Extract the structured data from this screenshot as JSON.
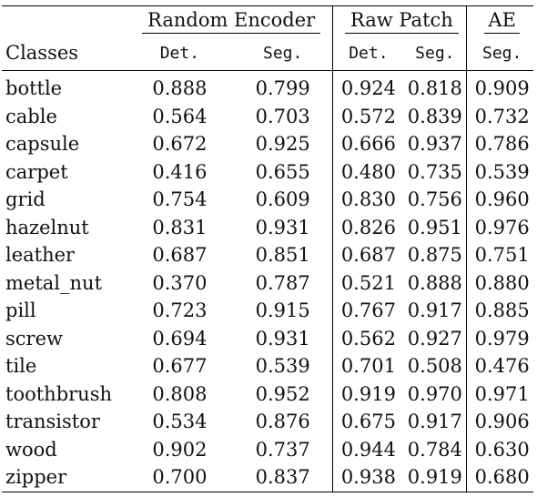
{
  "table": {
    "groups": [
      "Random Encoder",
      "Raw Patch",
      "AE"
    ],
    "columns": [
      "Classes",
      "Det.",
      "Seg.",
      "Det.",
      "Seg.",
      "Seg."
    ],
    "rows": [
      {
        "cls": "bottle",
        "v": [
          "0.888",
          "0.799",
          "0.924",
          "0.818",
          "0.909"
        ],
        "bold": [
          false,
          false,
          true,
          false,
          false
        ]
      },
      {
        "cls": "cable",
        "v": [
          "0.564",
          "0.703",
          "0.572",
          "0.839",
          "0.732"
        ],
        "bold": [
          false,
          false,
          false,
          false,
          false
        ]
      },
      {
        "cls": "capsule",
        "v": [
          "0.672",
          "0.925",
          "0.666",
          "0.937",
          "0.786"
        ],
        "bold": [
          false,
          true,
          false,
          true,
          false
        ]
      },
      {
        "cls": "carpet",
        "v": [
          "0.416",
          "0.655",
          "0.480",
          "0.735",
          "0.539"
        ],
        "bold": [
          false,
          false,
          false,
          false,
          false
        ]
      },
      {
        "cls": "grid",
        "v": [
          "0.754",
          "0.609",
          "0.830",
          "0.756",
          "0.960"
        ],
        "bold": [
          false,
          false,
          false,
          false,
          false
        ]
      },
      {
        "cls": "hazelnut",
        "v": [
          "0.831",
          "0.931",
          "0.826",
          "0.951",
          "0.976"
        ],
        "bold": [
          false,
          true,
          false,
          true,
          false
        ]
      },
      {
        "cls": "leather",
        "v": [
          "0.687",
          "0.851",
          "0.687",
          "0.875",
          "0.751"
        ],
        "bold": [
          false,
          false,
          false,
          false,
          false
        ]
      },
      {
        "cls": "metal_nut",
        "v": [
          "0.370",
          "0.787",
          "0.521",
          "0.888",
          "0.880"
        ],
        "bold": [
          false,
          false,
          false,
          false,
          false
        ]
      },
      {
        "cls": "pill",
        "v": [
          "0.723",
          "0.915",
          "0.767",
          "0.917",
          "0.885"
        ],
        "bold": [
          false,
          true,
          false,
          true,
          false
        ]
      },
      {
        "cls": "screw",
        "v": [
          "0.694",
          "0.931",
          "0.562",
          "0.927",
          "0.979"
        ],
        "bold": [
          false,
          true,
          false,
          true,
          false
        ]
      },
      {
        "cls": "tile",
        "v": [
          "0.677",
          "0.539",
          "0.701",
          "0.508",
          "0.476"
        ],
        "bold": [
          false,
          false,
          false,
          false,
          false
        ]
      },
      {
        "cls": "toothbrush",
        "v": [
          "0.808",
          "0.952",
          "0.919",
          "0.970",
          "0.971"
        ],
        "bold": [
          false,
          true,
          true,
          true,
          false
        ]
      },
      {
        "cls": "transistor",
        "v": [
          "0.534",
          "0.876",
          "0.675",
          "0.917",
          "0.906"
        ],
        "bold": [
          false,
          false,
          false,
          true,
          false
        ]
      },
      {
        "cls": "wood",
        "v": [
          "0.902",
          "0.737",
          "0.944",
          "0.784",
          "0.630"
        ],
        "bold": [
          true,
          false,
          true,
          false,
          false
        ]
      },
      {
        "cls": "zipper",
        "v": [
          "0.700",
          "0.837",
          "0.938",
          "0.919",
          "0.680"
        ],
        "bold": [
          false,
          false,
          true,
          true,
          false
        ]
      }
    ]
  }
}
